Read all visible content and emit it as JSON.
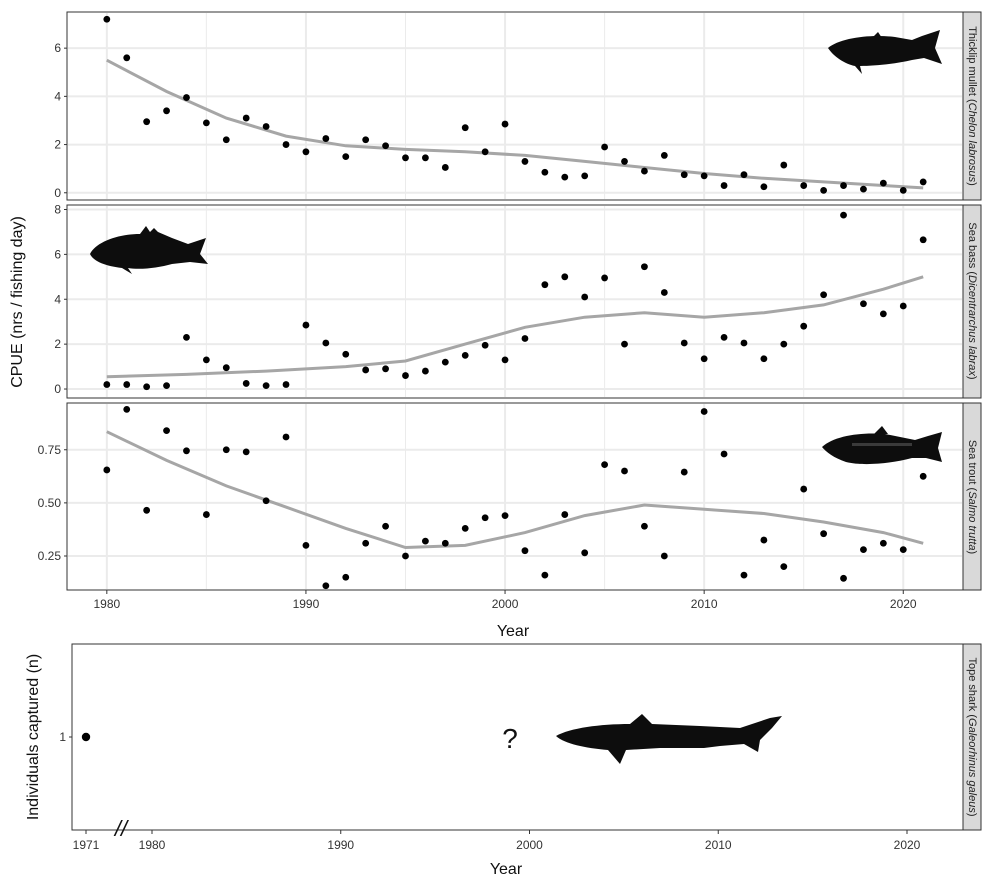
{
  "chart_data": [
    {
      "type": "scatter",
      "facet_strip": "Thicklip mullet",
      "facet_strip_species": "Chelon labrosus",
      "ylabel": "CPUE (nrs / fishing day)",
      "xlabel": "Year",
      "xlim": [
        1978,
        2023
      ],
      "ylim": [
        -0.3,
        7.5
      ],
      "x_ticks": [
        "1980",
        "1990",
        "2000",
        "2010",
        "2020"
      ],
      "y_ticks": [
        "0",
        "2",
        "4",
        "6"
      ],
      "grid": true,
      "points": {
        "x": [
          1980,
          1981,
          1982,
          1983,
          1984,
          1985,
          1986,
          1987,
          1988,
          1989,
          1990,
          1991,
          1992,
          1993,
          1994,
          1995,
          1996,
          1997,
          1998,
          1999,
          2000,
          2001,
          2002,
          2003,
          2004,
          2005,
          2006,
          2007,
          2008,
          2009,
          2010,
          2011,
          2012,
          2013,
          2014,
          2015,
          2016,
          2017,
          2018,
          2019,
          2020,
          2021
        ],
        "y": [
          7.2,
          5.6,
          2.95,
          3.4,
          3.95,
          2.9,
          2.2,
          3.1,
          2.75,
          2.0,
          1.7,
          2.25,
          1.5,
          2.2,
          1.95,
          1.45,
          1.45,
          1.05,
          2.7,
          1.7,
          2.85,
          1.3,
          0.85,
          0.65,
          0.7,
          1.9,
          1.3,
          0.9,
          1.55,
          0.75,
          0.7,
          0.3,
          0.75,
          0.25,
          1.15,
          0.3,
          0.1,
          0.3,
          0.15,
          0.4,
          0.1,
          0.45
        ]
      },
      "smooth": {
        "x": [
          1980,
          1983,
          1986,
          1989,
          1992,
          1995,
          1998,
          2001,
          2004,
          2007,
          2010,
          2013,
          2016,
          2019,
          2021
        ],
        "y": [
          5.5,
          4.2,
          3.1,
          2.35,
          1.95,
          1.8,
          1.7,
          1.55,
          1.3,
          1.05,
          0.8,
          0.6,
          0.45,
          0.3,
          0.2
        ]
      }
    },
    {
      "type": "scatter",
      "facet_strip": "Sea bass",
      "facet_strip_species": "Dicentrarchus labrax",
      "xlim": [
        1978,
        2023
      ],
      "ylim": [
        -0.4,
        8.2
      ],
      "y_ticks": [
        "0",
        "2",
        "4",
        "6",
        "8"
      ],
      "grid": true,
      "points": {
        "x": [
          1980,
          1981,
          1982,
          1983,
          1984,
          1985,
          1986,
          1987,
          1988,
          1989,
          1990,
          1991,
          1992,
          1993,
          1994,
          1995,
          1996,
          1997,
          1998,
          1999,
          2000,
          2001,
          2002,
          2003,
          2004,
          2005,
          2006,
          2007,
          2008,
          2009,
          2010,
          2011,
          2012,
          2013,
          2014,
          2015,
          2016,
          2017,
          2018,
          2019,
          2020,
          2021
        ],
        "y": [
          0.2,
          0.2,
          0.1,
          0.15,
          2.3,
          1.3,
          0.95,
          0.25,
          0.15,
          0.2,
          2.85,
          2.05,
          1.55,
          0.85,
          0.9,
          0.6,
          0.8,
          1.2,
          1.5,
          1.95,
          1.3,
          2.25,
          4.65,
          5.0,
          4.1,
          4.95,
          2.0,
          5.45,
          4.3,
          2.05,
          1.35,
          2.3,
          2.05,
          1.35,
          2.0,
          2.8,
          4.2,
          7.75,
          3.8,
          3.35,
          3.7,
          6.65
        ]
      },
      "smooth": {
        "x": [
          1980,
          1984,
          1988,
          1992,
          1995,
          1998,
          2001,
          2004,
          2007,
          2010,
          2013,
          2016,
          2019,
          2021
        ],
        "y": [
          0.55,
          0.65,
          0.8,
          1.0,
          1.25,
          2.0,
          2.75,
          3.2,
          3.4,
          3.2,
          3.4,
          3.75,
          4.45,
          5.0
        ]
      }
    },
    {
      "type": "scatter",
      "facet_strip": "Sea trout",
      "facet_strip_species": "Salmo trutta",
      "xlabel": "Year",
      "xlim": [
        1978,
        2023
      ],
      "ylim": [
        0.09,
        0.97
      ],
      "x_ticks": [
        "1980",
        "1990",
        "2000",
        "2010",
        "2020"
      ],
      "y_ticks": [
        "0.25",
        "0.50",
        "0.75"
      ],
      "grid": true,
      "points": {
        "x": [
          1980,
          1981,
          1982,
          1983,
          1984,
          1985,
          1986,
          1987,
          1988,
          1989,
          1990,
          1991,
          1992,
          1993,
          1994,
          1995,
          1996,
          1997,
          1998,
          1999,
          2000,
          2001,
          2002,
          2003,
          2004,
          2005,
          2006,
          2007,
          2008,
          2009,
          2010,
          2011,
          2012,
          2013,
          2014,
          2015,
          2016,
          2017,
          2018,
          2019,
          2020,
          2021
        ],
        "y": [
          0.655,
          0.94,
          0.465,
          0.84,
          0.745,
          0.445,
          0.75,
          0.74,
          0.51,
          0.81,
          0.3,
          0.11,
          0.15,
          0.31,
          0.39,
          0.25,
          0.32,
          0.31,
          0.38,
          0.43,
          0.44,
          0.275,
          0.16,
          0.445,
          0.265,
          0.68,
          0.65,
          0.39,
          0.25,
          0.645,
          0.93,
          0.73,
          0.16,
          0.325,
          0.2,
          0.565,
          0.355,
          0.145,
          0.28,
          0.31,
          0.28,
          0.625
        ]
      },
      "smooth": {
        "x": [
          1980,
          1983,
          1986,
          1989,
          1992,
          1995,
          1998,
          2001,
          2004,
          2007,
          2010,
          2013,
          2016,
          2019,
          2021
        ],
        "y": [
          0.835,
          0.7,
          0.58,
          0.48,
          0.38,
          0.29,
          0.3,
          0.36,
          0.44,
          0.49,
          0.47,
          0.45,
          0.41,
          0.36,
          0.31
        ]
      }
    },
    {
      "type": "scatter",
      "facet_strip": "Tope shark",
      "facet_strip_species": "Galeorhinus galeus",
      "ylabel": "Individuals captured (n)",
      "xlabel": "Year",
      "x_ticks": [
        "1971",
        "1980",
        "1990",
        "2000",
        "2010",
        "2020"
      ],
      "y_ticks": [
        "1"
      ],
      "axis_break": "//",
      "annotation": "?",
      "grid": false,
      "points": {
        "x": [
          1971
        ],
        "y": [
          1
        ]
      }
    }
  ],
  "colors": {
    "points": "#000000",
    "smooth": "#a6a6a6",
    "grid": "#ebebeb",
    "strip_fill": "#d9d9d9",
    "panel_border": "#333333",
    "silhouette": "#0d0d0d"
  },
  "icons": [
    "thicklip-mullet-silhouette",
    "sea-bass-silhouette",
    "sea-trout-silhouette",
    "tope-shark-silhouette"
  ]
}
